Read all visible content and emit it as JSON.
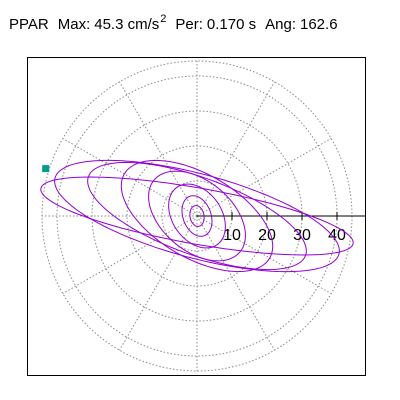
{
  "header": {
    "channel": "PPAR",
    "max_label": "Max:",
    "max_value": "45.3 cm/s",
    "max_exp": "2",
    "per_label": "Per:",
    "per_value": "0.170 s",
    "ang_label": "Ang:",
    "ang_value": "162.6"
  },
  "chart_data": {
    "type": "polar-orbit",
    "max_magnitude": 45.3,
    "period_s": 0.17,
    "angle_deg": 162.6,
    "radial_ticks": [
      10,
      20,
      30,
      40
    ],
    "tick_labels": [
      "10",
      "20",
      "30",
      "40"
    ],
    "grid": true,
    "rings": [
      10,
      20,
      30,
      40
    ],
    "spokes_deg": [
      0,
      30,
      60,
      90,
      120,
      150,
      180,
      210,
      240,
      270,
      300,
      330
    ],
    "trace_color": "#9400d3",
    "grid_color": "#888888",
    "marker_color": "#009b8a",
    "marker": {
      "magnitude": 45.3,
      "angle_deg": 162.6
    },
    "loops": [
      {
        "a": 45.3,
        "b": 8.0,
        "rot_deg": -10
      },
      {
        "a": 42.0,
        "b": 12.0,
        "rot_deg": -15
      },
      {
        "a": 33.0,
        "b": 11.0,
        "rot_deg": -20
      },
      {
        "a": 24.0,
        "b": 12.0,
        "rot_deg": -30
      },
      {
        "a": 16.0,
        "b": 10.0,
        "rot_deg": -40
      },
      {
        "a": 10.0,
        "b": 7.0,
        "rot_deg": -55
      },
      {
        "a": 6.0,
        "b": 4.0,
        "rot_deg": -70
      },
      {
        "a": 3.0,
        "b": 2.0,
        "rot_deg": -80
      }
    ]
  }
}
